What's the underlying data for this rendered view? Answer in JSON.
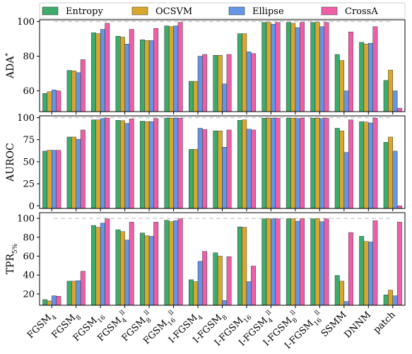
{
  "chart_data": [
    {
      "type": "bar",
      "ylabel": "ADA*",
      "ylim": [
        48,
        101
      ],
      "yticks": [
        60,
        80,
        100
      ],
      "reference_line": 100,
      "categories": [
        "FGSM4",
        "FGSM8",
        "FGSM16",
        "FGSM4ll",
        "FGSM8ll",
        "FGSM16ll",
        "I-FGSM4",
        "I-FGSM8",
        "I-FGSM16",
        "I-FGSM4ll",
        "I-FGSM8ll",
        "I-FGSM16ll",
        "SSMM",
        "DNNM",
        "patch"
      ],
      "series": [
        {
          "name": "Entropy",
          "values": [
            58.5,
            71.8,
            93.5,
            91.5,
            89.5,
            97.5,
            65.5,
            80.5,
            93,
            99.5,
            99.5,
            99.5,
            81,
            88,
            66
          ]
        },
        {
          "name": "OCSVM",
          "values": [
            59.5,
            71.5,
            93,
            91,
            89,
            97,
            65.5,
            80.5,
            93,
            99.5,
            99,
            99.5,
            77.5,
            87,
            72
          ]
        },
        {
          "name": "Ellipse",
          "values": [
            60.5,
            70.5,
            95.5,
            87,
            89,
            97.5,
            80,
            64,
            82.5,
            98.5,
            96.5,
            97,
            60,
            87.5,
            60
          ]
        },
        {
          "name": "CrossA",
          "values": [
            60,
            78,
            99,
            95.5,
            96,
            99.5,
            81,
            81,
            81.5,
            99.5,
            99.5,
            99.5,
            94,
            97,
            50
          ]
        }
      ]
    },
    {
      "type": "bar",
      "ylabel": "AUROC",
      "ylim": [
        -3,
        102
      ],
      "yticks": [
        0,
        25,
        50,
        75,
        100
      ],
      "reference_line": 100,
      "categories": [
        "FGSM4",
        "FGSM8",
        "FGSM16",
        "FGSM4ll",
        "FGSM8ll",
        "FGSM16ll",
        "I-FGSM4",
        "I-FGSM8",
        "I-FGSM16",
        "I-FGSM4ll",
        "I-FGSM8ll",
        "I-FGSM16ll",
        "SSMM",
        "DNNM",
        "patch"
      ],
      "series": [
        {
          "name": "Entropy",
          "values": [
            62,
            78,
            97.5,
            97,
            96,
            99.5,
            64,
            85,
            97,
            99.5,
            99.5,
            99.5,
            88,
            95.5,
            72
          ]
        },
        {
          "name": "OCSVM",
          "values": [
            63,
            78,
            97.5,
            96.5,
            95.5,
            99.5,
            64,
            85,
            97.5,
            99.5,
            99.5,
            99.5,
            85,
            95,
            78
          ]
        },
        {
          "name": "Ellipse",
          "values": [
            63,
            75.5,
            99,
            93.5,
            95.5,
            99.5,
            88,
            66.5,
            87,
            99.5,
            99,
            99,
            60.5,
            94,
            62
          ]
        },
        {
          "name": "CrossA",
          "values": [
            63,
            86,
            99.5,
            98.5,
            99,
            99.5,
            86.5,
            86,
            86,
            99.5,
            99.5,
            99.5,
            97.5,
            99.5,
            0
          ]
        }
      ]
    },
    {
      "type": "bar",
      "ylabel": "TPR5%",
      "ylim": [
        8,
        106
      ],
      "yticks": [
        20,
        40,
        60,
        80,
        100
      ],
      "reference_line": 100,
      "categories": [
        "FGSM4",
        "FGSM8",
        "FGSM16",
        "FGSM4ll",
        "FGSM8ll",
        "FGSM16ll",
        "I-FGSM4",
        "I-FGSM8",
        "I-FGSM16",
        "I-FGSM4ll",
        "I-FGSM8ll",
        "I-FGSM16ll",
        "SSMM",
        "DNNM",
        "patch"
      ],
      "series": [
        {
          "name": "Entropy",
          "values": [
            14,
            33.5,
            92.5,
            88,
            84.5,
            98,
            35,
            63.5,
            91,
            99.5,
            99.5,
            99.5,
            39.5,
            81,
            19
          ]
        },
        {
          "name": "OCSVM",
          "values": [
            12.5,
            33.5,
            90.5,
            86,
            81.5,
            96.5,
            33,
            60,
            90.5,
            99.5,
            99.5,
            99.5,
            33.5,
            75.5,
            24
          ]
        },
        {
          "name": "Ellipse",
          "values": [
            18,
            34,
            95,
            77,
            81,
            97.5,
            54.5,
            13,
            33,
            99.5,
            97,
            96.5,
            12,
            75,
            18
          ]
        },
        {
          "name": "CrossA",
          "values": [
            17.5,
            44,
            99.5,
            96,
            96,
            99.5,
            65,
            59.5,
            49.5,
            99.5,
            99.5,
            99.5,
            85,
            97.5,
            96
          ]
        }
      ]
    }
  ],
  "legend": [
    {
      "name": "Entropy",
      "color": "#3cab6b"
    },
    {
      "name": "OCSVM",
      "color": "#d9a72e"
    },
    {
      "name": "Ellipse",
      "color": "#6495e8"
    },
    {
      "name": "CrossA",
      "color": "#ee5fa8"
    }
  ],
  "x_labels": [
    {
      "base": "FGSM",
      "sub": "4",
      "sup": ""
    },
    {
      "base": "FGSM",
      "sub": "8",
      "sup": ""
    },
    {
      "base": "FGSM",
      "sub": "16",
      "sup": ""
    },
    {
      "base": "FGSM",
      "sub": "4",
      "sup": "ll"
    },
    {
      "base": "FGSM",
      "sub": "8",
      "sup": "ll"
    },
    {
      "base": "FGSM",
      "sub": "16",
      "sup": "ll"
    },
    {
      "base": "I-FGSM",
      "sub": "4",
      "sup": ""
    },
    {
      "base": "I-FGSM",
      "sub": "8",
      "sup": ""
    },
    {
      "base": "I-FGSM",
      "sub": "16",
      "sup": ""
    },
    {
      "base": "I-FGSM",
      "sub": "4",
      "sup": "ll"
    },
    {
      "base": "I-FGSM",
      "sub": "8",
      "sup": "ll"
    },
    {
      "base": "I-FGSM",
      "sub": "16",
      "sup": "ll"
    },
    {
      "base": "SSMM",
      "sub": "",
      "sup": ""
    },
    {
      "base": "DNNM",
      "sub": "",
      "sup": ""
    },
    {
      "base": "patch",
      "sub": "",
      "sup": ""
    }
  ],
  "ylabels": [
    {
      "base": "ADA",
      "sub": "",
      "sup": "*"
    },
    {
      "base": "AUROC",
      "sub": "",
      "sup": ""
    },
    {
      "base": "TPR",
      "sub": "5%",
      "sup": ""
    }
  ]
}
